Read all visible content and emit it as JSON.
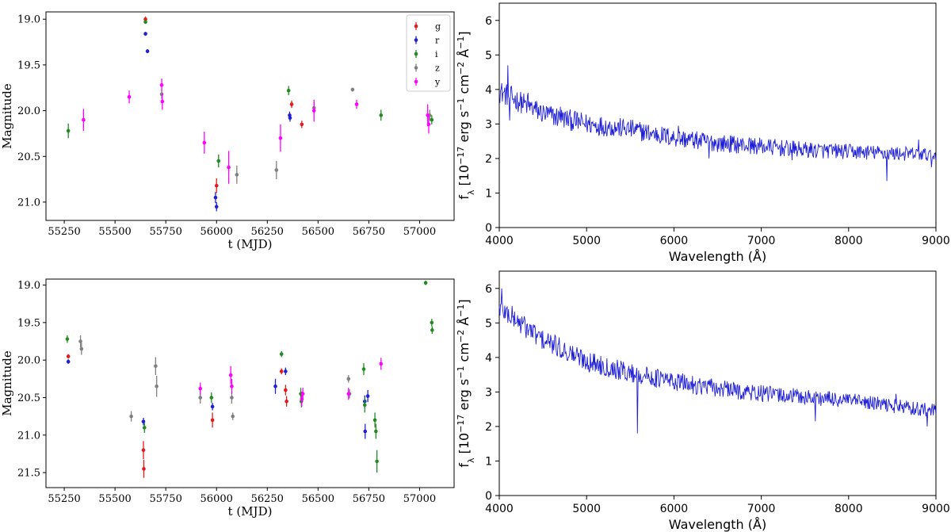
{
  "chart_data": [
    {
      "type": "scatter",
      "panel": "top-left",
      "xlabel": "t (MJD)",
      "ylabel": "Magnitude",
      "xlim": [
        55160,
        57170
      ],
      "ylim": [
        21.2,
        18.92
      ],
      "y_inverted": true,
      "xticks": [
        55250,
        55500,
        55750,
        56000,
        56250,
        56500,
        56750,
        57000
      ],
      "yticks": [
        19.0,
        19.5,
        20.0,
        20.5,
        21.0
      ],
      "ytick_labels": [
        "19.0",
        "19.5",
        "20.0",
        "20.5",
        "21.0"
      ],
      "legend": {
        "position": "top-right",
        "entries": [
          "g",
          "r",
          "i",
          "z",
          "y"
        ]
      },
      "series": [
        {
          "name": "g",
          "color": "#e41a1c",
          "points": [
            [
              55650,
              19.0,
              0.03
            ],
            [
              56000,
              20.82,
              0.08
            ],
            [
              56370,
              19.93,
              0.04
            ],
            [
              56420,
              20.15,
              0.04
            ]
          ]
        },
        {
          "name": "r",
          "color": "#1f1fd6",
          "points": [
            [
              55650,
              19.16,
              0.02
            ],
            [
              55660,
              19.35,
              0.02
            ],
            [
              55995,
              20.95,
              0.06
            ],
            [
              56000,
              21.05,
              0.05
            ],
            [
              56360,
              20.05,
              0.04
            ],
            [
              56362,
              20.08,
              0.04
            ]
          ]
        },
        {
          "name": "i",
          "color": "#228b22",
          "points": [
            [
              55270,
              20.22,
              0.08
            ],
            [
              55650,
              19.03,
              0.02
            ],
            [
              56010,
              20.55,
              0.07
            ],
            [
              56355,
              19.78,
              0.05
            ],
            [
              56810,
              20.05,
              0.06
            ],
            [
              57060,
              20.1,
              0.05
            ]
          ]
        },
        {
          "name": "z",
          "color": "#808080",
          "points": [
            [
              55730,
              19.82,
              0.05
            ],
            [
              56100,
              20.7,
              0.1
            ],
            [
              56295,
              20.65,
              0.1
            ],
            [
              56480,
              19.97,
              0.06
            ],
            [
              56670,
              19.77,
              0.02
            ],
            [
              57050,
              20.05,
              0.06
            ]
          ]
        },
        {
          "name": "y",
          "color": "#ff00ff",
          "points": [
            [
              55345,
              20.1,
              0.12
            ],
            [
              55570,
              19.85,
              0.07
            ],
            [
              55730,
              19.72,
              0.07
            ],
            [
              55733,
              19.9,
              0.09
            ],
            [
              55940,
              20.35,
              0.12
            ],
            [
              56060,
              20.62,
              0.18
            ],
            [
              56315,
              20.3,
              0.15
            ],
            [
              56480,
              20.0,
              0.12
            ],
            [
              56690,
              19.93,
              0.05
            ],
            [
              57040,
              20.05,
              0.12
            ],
            [
              57045,
              20.15,
              0.1
            ]
          ]
        }
      ]
    },
    {
      "type": "line",
      "panel": "top-right",
      "xlabel": "Wavelength (Å)",
      "ylabel": "f_λ [10^-17 erg s^-1 cm^-2 Å^-1]",
      "xlim": [
        4000,
        9000
      ],
      "ylim": [
        0,
        6.5
      ],
      "xticks": [
        4000,
        5000,
        6000,
        7000,
        8000,
        9000
      ],
      "yticks": [
        0,
        1,
        2,
        3,
        4,
        5,
        6
      ],
      "color": "#1f1fd6",
      "continuum": [
        [
          4000,
          3.95
        ],
        [
          4500,
          3.3
        ],
        [
          5000,
          3.0
        ],
        [
          5500,
          2.85
        ],
        [
          6000,
          2.6
        ],
        [
          6500,
          2.45
        ],
        [
          7000,
          2.35
        ],
        [
          7500,
          2.25
        ],
        [
          8000,
          2.2
        ],
        [
          8500,
          2.15
        ],
        [
          9000,
          2.1
        ]
      ],
      "features": [
        [
          4100,
          4.7
        ],
        [
          4120,
          3.1
        ],
        [
          4330,
          3.9
        ],
        [
          4700,
          3.5
        ],
        [
          6050,
          2.95
        ],
        [
          6400,
          2.0
        ],
        [
          7350,
          1.95
        ],
        [
          8440,
          1.35
        ],
        [
          8800,
          2.55
        ],
        [
          8950,
          1.75
        ]
      ]
    },
    {
      "type": "scatter",
      "panel": "bottom-left",
      "xlabel": "t (MJD)",
      "ylabel": "Magnitude",
      "xlim": [
        55160,
        57170
      ],
      "ylim": [
        21.7,
        18.92
      ],
      "y_inverted": true,
      "xticks": [
        55250,
        55500,
        55750,
        56000,
        56250,
        56500,
        56750,
        57000
      ],
      "yticks": [
        19.0,
        19.5,
        20.0,
        20.5,
        21.0,
        21.5
      ],
      "ytick_labels": [
        "19.0",
        "19.5",
        "20.0",
        "20.5",
        "21.0",
        "21.5"
      ],
      "series": [
        {
          "name": "g",
          "color": "#e41a1c",
          "points": [
            [
              55270,
              19.95,
              0.03
            ],
            [
              55640,
              21.2,
              0.12
            ],
            [
              55642,
              21.45,
              0.12
            ],
            [
              55980,
              20.8,
              0.1
            ],
            [
              56320,
              20.15,
              0.04
            ],
            [
              56340,
              20.4,
              0.07
            ],
            [
              56345,
              20.55,
              0.07
            ]
          ]
        },
        {
          "name": "r",
          "color": "#1f1fd6",
          "points": [
            [
              55270,
              20.02,
              0.03
            ],
            [
              55640,
              20.82,
              0.05
            ],
            [
              55980,
              20.62,
              0.05
            ],
            [
              56290,
              20.35,
              0.1
            ],
            [
              56340,
              20.15,
              0.05
            ],
            [
              56730,
              20.55,
              0.08
            ],
            [
              56732,
              20.95,
              0.1
            ],
            [
              56745,
              20.48,
              0.08
            ]
          ]
        },
        {
          "name": "i",
          "color": "#228b22",
          "points": [
            [
              55265,
              19.72,
              0.05
            ],
            [
              55645,
              20.9,
              0.07
            ],
            [
              55975,
              20.5,
              0.07
            ],
            [
              56320,
              19.92,
              0.04
            ],
            [
              56415,
              20.45,
              0.08
            ],
            [
              56418,
              20.55,
              0.08
            ],
            [
              56725,
              20.12,
              0.08
            ],
            [
              56730,
              20.6,
              0.1
            ],
            [
              56780,
              20.8,
              0.1
            ],
            [
              56785,
              20.95,
              0.1
            ],
            [
              56790,
              21.35,
              0.15
            ],
            [
              57030,
              18.97,
              0.03
            ],
            [
              57060,
              19.5,
              0.05
            ],
            [
              57062,
              19.6,
              0.05
            ]
          ]
        },
        {
          "name": "z",
          "color": "#808080",
          "points": [
            [
              55330,
              19.75,
              0.08
            ],
            [
              55335,
              19.85,
              0.08
            ],
            [
              55580,
              20.75,
              0.07
            ],
            [
              55700,
              20.08,
              0.12
            ],
            [
              55705,
              20.35,
              0.14
            ],
            [
              55920,
              20.5,
              0.08
            ],
            [
              56075,
              20.5,
              0.08
            ],
            [
              56080,
              20.75,
              0.05
            ],
            [
              56650,
              20.25,
              0.05
            ],
            [
              56655,
              20.45,
              0.06
            ]
          ]
        },
        {
          "name": "y",
          "color": "#ff00ff",
          "points": [
            [
              55920,
              20.38,
              0.08
            ],
            [
              56070,
              20.2,
              0.12
            ],
            [
              56075,
              20.35,
              0.1
            ],
            [
              56420,
              20.52,
              0.1
            ],
            [
              56425,
              20.45,
              0.08
            ],
            [
              56650,
              20.45,
              0.08
            ],
            [
              56810,
              20.05,
              0.08
            ]
          ]
        }
      ]
    },
    {
      "type": "line",
      "panel": "bottom-right",
      "xlabel": "Wavelength (Å)",
      "ylabel": "f_λ [10^-17 erg s^-1 cm^-2 Å^-1]",
      "xlim": [
        4000,
        9000
      ],
      "ylim": [
        0,
        6.5
      ],
      "xticks": [
        4000,
        5000,
        6000,
        7000,
        8000,
        9000
      ],
      "yticks": [
        0,
        1,
        2,
        3,
        4,
        5,
        6
      ],
      "color": "#1f1fd6",
      "continuum": [
        [
          4000,
          5.45
        ],
        [
          4500,
          4.5
        ],
        [
          5000,
          3.9
        ],
        [
          5500,
          3.55
        ],
        [
          6000,
          3.3
        ],
        [
          6500,
          3.1
        ],
        [
          7000,
          2.95
        ],
        [
          7500,
          2.85
        ],
        [
          8000,
          2.75
        ],
        [
          8500,
          2.6
        ],
        [
          9000,
          2.45
        ]
      ],
      "features": [
        [
          4030,
          6.0
        ],
        [
          5580,
          1.8
        ],
        [
          7620,
          2.15
        ],
        [
          8540,
          2.95
        ],
        [
          8900,
          2.0
        ]
      ]
    }
  ]
}
